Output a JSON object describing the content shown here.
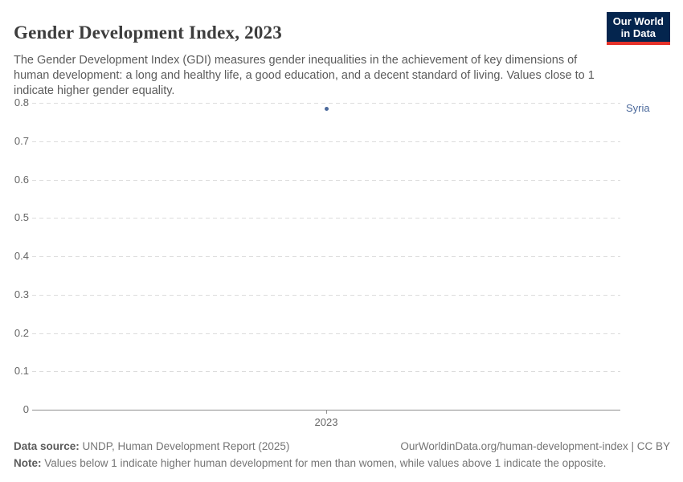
{
  "header": {
    "title": "Gender Development Index, 2023",
    "subtitle": "The Gender Development Index (GDI) measures gender inequalities in the achievement of key dimensions of human development: a long and healthy life, a good education, and a decent standard of living. Values close to 1 indicate higher gender equality.",
    "logo": {
      "line1": "Our World",
      "line2": "in Data",
      "bg_color": "#04254e",
      "accent_color": "#e5322a"
    }
  },
  "chart_data": {
    "type": "scatter",
    "title": "Gender Development Index, 2023",
    "x": [
      2023
    ],
    "x_ticks": [
      "2023"
    ],
    "series": [
      {
        "name": "Syria",
        "values": [
          0.785
        ],
        "color": "#4c6a9c"
      }
    ],
    "ylim": [
      0,
      0.8
    ],
    "y_ticks": [
      0,
      0.1,
      0.2,
      0.3,
      0.4,
      0.5,
      0.6,
      0.7,
      0.8
    ],
    "grid": true,
    "legend_position": "right-of-point"
  },
  "footer": {
    "datasource_label": "Data source:",
    "datasource_value": " UNDP, Human Development Report (2025)",
    "link": "OurWorldinData.org/human-development-index | CC BY",
    "note_label": "Note:",
    "note_value": " Values below 1 indicate higher human development for men than women, while values above 1 indicate the opposite."
  }
}
